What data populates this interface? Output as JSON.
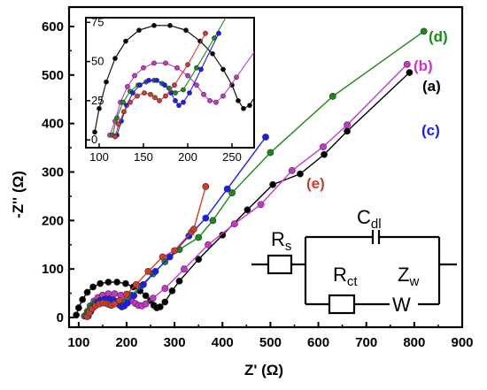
{
  "chart_data": {
    "type": "scatter",
    "xlabel": "Z' (Ω)",
    "ylabel": "-Z'' (Ω)",
    "xlim": [
      80,
      900
    ],
    "ylim": [
      -20,
      640
    ],
    "x_ticks": [
      "100",
      "200",
      "300",
      "400",
      "500",
      "600",
      "700",
      "800",
      "900"
    ],
    "y_ticks": [
      "0",
      "100",
      "200",
      "300",
      "400",
      "500",
      "600"
    ],
    "series": [
      {
        "name": "(a)",
        "color": "#000000",
        "points": [
          [
            95,
            5
          ],
          [
            100,
            20
          ],
          [
            108,
            37
          ],
          [
            118,
            52
          ],
          [
            130,
            63
          ],
          [
            145,
            70
          ],
          [
            162,
            73
          ],
          [
            180,
            73
          ],
          [
            198,
            70
          ],
          [
            214,
            63
          ],
          [
            228,
            55
          ],
          [
            240,
            45
          ],
          [
            250,
            35
          ],
          [
            257,
            25
          ],
          [
            263,
            20
          ],
          [
            270,
            22
          ],
          [
            280,
            32
          ],
          [
            295,
            55
          ],
          [
            310,
            75
          ],
          [
            350,
            120
          ],
          [
            400,
            170
          ],
          [
            452,
            222
          ],
          [
            505,
            274
          ],
          [
            562,
            296
          ],
          [
            612,
            336
          ],
          [
            660,
            384
          ],
          [
            790,
            505
          ]
        ]
      },
      {
        "name": "(b)",
        "color": "#cc33cc",
        "points": [
          [
            112,
            3
          ],
          [
            118,
            12
          ],
          [
            124,
            24
          ],
          [
            132,
            34
          ],
          [
            140,
            41
          ],
          [
            150,
            46
          ],
          [
            162,
            49
          ],
          [
            175,
            49
          ],
          [
            188,
            46
          ],
          [
            200,
            41
          ],
          [
            210,
            35
          ],
          [
            218,
            29
          ],
          [
            225,
            25
          ],
          [
            232,
            24
          ],
          [
            240,
            28
          ],
          [
            255,
            40
          ],
          [
            280,
            60
          ],
          [
            320,
            100
          ],
          [
            370,
            150
          ],
          [
            425,
            193
          ],
          [
            480,
            233
          ],
          [
            545,
            303
          ],
          [
            610,
            352
          ],
          [
            660,
            397
          ],
          [
            785,
            522
          ]
        ]
      },
      {
        "name": "(c)",
        "color": "#1a1aff",
        "points": [
          [
            120,
            3
          ],
          [
            125,
            12
          ],
          [
            131,
            22
          ],
          [
            138,
            30
          ],
          [
            146,
            35
          ],
          [
            156,
            38
          ],
          [
            165,
            38
          ],
          [
            174,
            35
          ],
          [
            181,
            30
          ],
          [
            186,
            25
          ],
          [
            190,
            22
          ],
          [
            195,
            24
          ],
          [
            202,
            30
          ],
          [
            215,
            45
          ],
          [
            235,
            68
          ],
          [
            260,
            95
          ],
          [
            290,
            125
          ],
          [
            330,
            168
          ],
          [
            365,
            205
          ],
          [
            410,
            265
          ],
          [
            490,
            372
          ]
        ]
      },
      {
        "name": "(d)",
        "color": "#1a8a1a",
        "points": [
          [
            115,
            3
          ],
          [
            120,
            14
          ],
          [
            127,
            24
          ],
          [
            135,
            31
          ],
          [
            144,
            35
          ],
          [
            153,
            37
          ],
          [
            162,
            38
          ],
          [
            171,
            36
          ],
          [
            179,
            33
          ],
          [
            186,
            30
          ],
          [
            195,
            32
          ],
          [
            210,
            46
          ],
          [
            230,
            65
          ],
          [
            255,
            90
          ],
          [
            280,
            115
          ],
          [
            310,
            140
          ],
          [
            350,
            165
          ],
          [
            380,
            200
          ],
          [
            420,
            257
          ],
          [
            500,
            340
          ],
          [
            630,
            456
          ],
          [
            820,
            590
          ]
        ]
      },
      {
        "name": "(e)",
        "color": "#d43a2a",
        "points": [
          [
            118,
            2
          ],
          [
            122,
            10
          ],
          [
            128,
            18
          ],
          [
            135,
            24
          ],
          [
            143,
            28
          ],
          [
            151,
            30
          ],
          [
            158,
            29
          ],
          [
            163,
            27
          ],
          [
            168,
            25
          ],
          [
            175,
            28
          ],
          [
            185,
            35
          ],
          [
            200,
            48
          ],
          [
            220,
            68
          ],
          [
            245,
            95
          ],
          [
            275,
            125
          ],
          [
            300,
            138
          ],
          [
            335,
            176
          ],
          [
            340,
            182
          ],
          [
            365,
            270
          ]
        ]
      }
    ],
    "inset": {
      "xlim": [
        85,
        275
      ],
      "ylim": [
        -5,
        78
      ],
      "x_ticks": [
        "100",
        "150",
        "200",
        "250"
      ],
      "y_ticks": [
        "0",
        "25",
        "50",
        "75"
      ]
    },
    "circuit": {
      "labels": [
        "R",
        "s",
        "C",
        "dl",
        "R",
        "ct",
        "Z",
        "w",
        "W"
      ]
    }
  }
}
